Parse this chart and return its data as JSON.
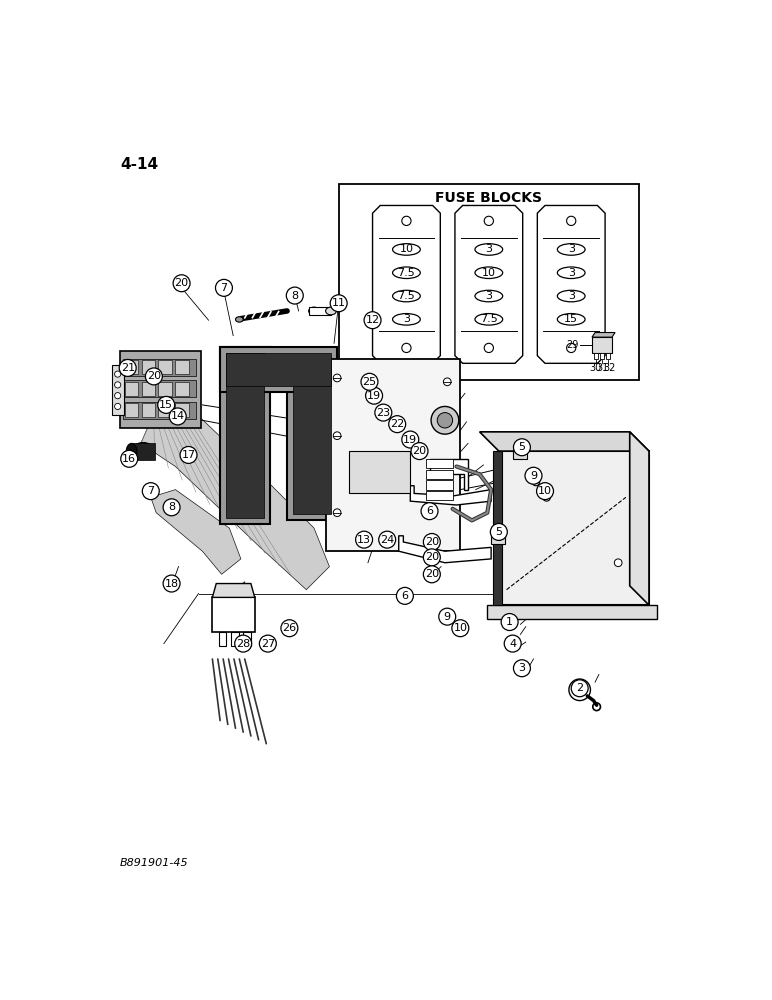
{
  "page_label": "4-14",
  "bottom_label": "B891901-45",
  "fuse_blocks_title": "FUSE BLOCKS",
  "fuse_block_col1": [
    "10",
    "7.5",
    "7.5",
    "3"
  ],
  "fuse_block_col2": [
    "3",
    "10",
    "3",
    "7.5"
  ],
  "fuse_block_col3": [
    "3",
    "3",
    "3",
    "15"
  ],
  "bg_color": "#ffffff",
  "line_color": "#000000",
  "text_color": "#000000",
  "gray_dark": "#555555",
  "gray_mid": "#888888",
  "gray_light": "#cccccc",
  "gray_foam": "#999999"
}
